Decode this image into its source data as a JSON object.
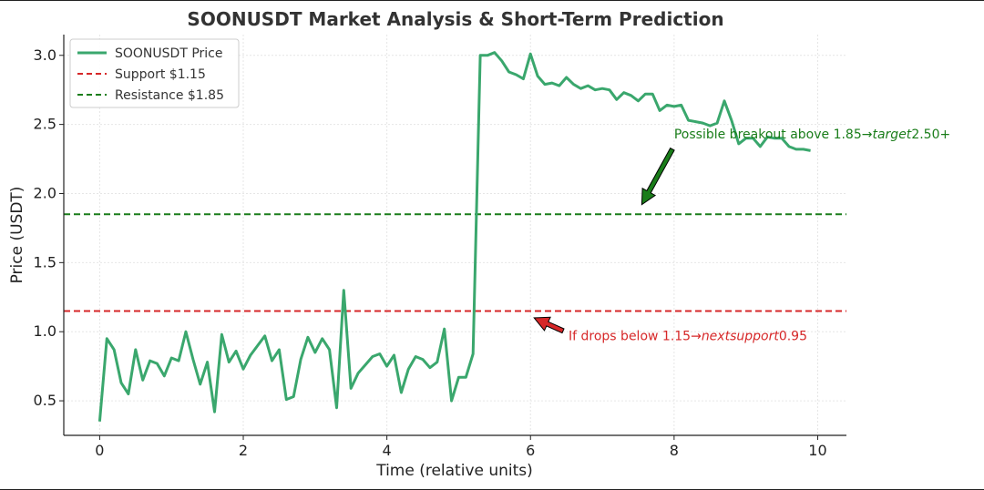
{
  "chart_data": {
    "type": "line",
    "title": "SOONUSDT Market Analysis & Short-Term Prediction",
    "xlabel": "Time (relative units)",
    "ylabel": "Price (USDT)",
    "xlim": [
      -0.5,
      10.4
    ],
    "ylim": [
      0.25,
      3.15
    ],
    "xticks": [
      0,
      2,
      4,
      6,
      8,
      10
    ],
    "xtick_labels": [
      "0",
      "2",
      "4",
      "6",
      "8",
      "10"
    ],
    "yticks": [
      0.5,
      1.0,
      1.5,
      2.0,
      2.5,
      3.0
    ],
    "ytick_labels": [
      "0.5",
      "1.0",
      "1.5",
      "2.0",
      "2.5",
      "3.0"
    ],
    "grid": true,
    "legend_position": "top-left",
    "series": [
      {
        "name": "SOONUSDT Price",
        "color": "#3aa76d",
        "style": "solid",
        "x": [
          0,
          0.1,
          0.2,
          0.3,
          0.4,
          0.5,
          0.6,
          0.7,
          0.8,
          0.9,
          1.0,
          1.1,
          1.2,
          1.3,
          1.4,
          1.5,
          1.6,
          1.7,
          1.8,
          1.9,
          2.0,
          2.1,
          2.2,
          2.3,
          2.4,
          2.5,
          2.6,
          2.7,
          2.8,
          2.9,
          3.0,
          3.1,
          3.2,
          3.3,
          3.4,
          3.5,
          3.6,
          3.7,
          3.8,
          3.9,
          4.0,
          4.1,
          4.2,
          4.3,
          4.4,
          4.5,
          4.6,
          4.7,
          4.8,
          4.9,
          5.0,
          5.1,
          5.2,
          5.3,
          5.4,
          5.5,
          5.6,
          5.7,
          5.8,
          5.9,
          6.0,
          6.1,
          6.2,
          6.3,
          6.4,
          6.5,
          6.6,
          6.7,
          6.8,
          6.9,
          7.0,
          7.1,
          7.2,
          7.3,
          7.4,
          7.5,
          7.6,
          7.7,
          7.8,
          7.9,
          8.0,
          8.1,
          8.2,
          8.3,
          8.4,
          8.5,
          8.6,
          8.7,
          8.8,
          8.9,
          9.0,
          9.1,
          9.2,
          9.3,
          9.4,
          9.5,
          9.6,
          9.7,
          9.8,
          9.9
        ],
        "values": [
          0.35,
          0.95,
          0.87,
          0.63,
          0.55,
          0.87,
          0.65,
          0.79,
          0.77,
          0.68,
          0.81,
          0.79,
          1.0,
          0.8,
          0.62,
          0.78,
          0.42,
          0.98,
          0.78,
          0.86,
          0.73,
          0.83,
          0.9,
          0.97,
          0.79,
          0.87,
          0.51,
          0.53,
          0.8,
          0.96,
          0.85,
          0.95,
          0.87,
          0.45,
          1.3,
          0.59,
          0.7,
          0.76,
          0.82,
          0.84,
          0.75,
          0.83,
          0.56,
          0.73,
          0.82,
          0.8,
          0.74,
          0.78,
          1.02,
          0.5,
          0.67,
          0.67,
          0.84,
          3.0,
          3.0,
          3.02,
          2.96,
          2.88,
          2.86,
          2.83,
          3.01,
          2.85,
          2.79,
          2.8,
          2.78,
          2.84,
          2.79,
          2.76,
          2.78,
          2.75,
          2.76,
          2.75,
          2.68,
          2.73,
          2.71,
          2.67,
          2.72,
          2.72,
          2.6,
          2.64,
          2.63,
          2.64,
          2.53,
          2.52,
          2.51,
          2.49,
          2.51,
          2.67,
          2.53,
          2.36,
          2.4,
          2.4,
          2.34,
          2.41,
          2.4,
          2.4,
          2.34,
          2.32,
          2.32,
          2.31
        ]
      },
      {
        "name": "Support $1.15",
        "color": "#d62728",
        "style": "dashed",
        "y": 1.15
      },
      {
        "name": "Resistance $1.85",
        "color": "#1a7d1a",
        "style": "dashed",
        "y": 1.85
      }
    ],
    "annotations": [
      {
        "text_plain": "Possible breakout above 1.85→",
        "text_italic": "target",
        "text_tail": "2.50+",
        "color": "#1a7d1a",
        "arrow_color": "#1a7d1a",
        "text_pos": [
          8.0,
          2.4
        ],
        "point": [
          7.55,
          1.92
        ]
      },
      {
        "text_plain": "If drops below 1.15→",
        "text_italic": "nextsupport",
        "text_tail": "0.95",
        "color": "#d62728",
        "arrow_color": "#d62728",
        "text_pos": [
          6.53,
          0.94
        ],
        "point": [
          6.05,
          1.1
        ]
      }
    ]
  }
}
